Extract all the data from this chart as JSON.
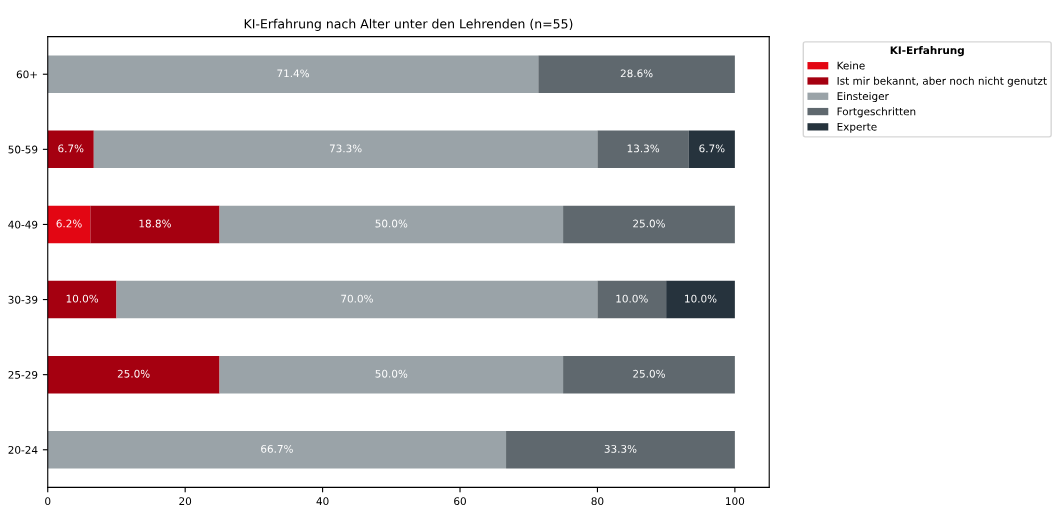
{
  "chart_data": {
    "type": "bar",
    "orientation": "horizontal",
    "stacked": true,
    "title": "KI-Erfahrung nach Alter unter den Lehrenden (n=55)",
    "categories": [
      "60+",
      "50-59",
      "40-49",
      "30-39",
      "25-29",
      "20-24"
    ],
    "series": [
      {
        "name": "Keine",
        "color": "#e30613",
        "values": [
          0,
          0,
          6.2,
          0,
          0,
          0
        ],
        "value_labels": [
          null,
          null,
          "6.2%",
          null,
          null,
          null
        ]
      },
      {
        "name": "Ist mir bekannt, aber noch nicht genutzt",
        "color": "#a50010",
        "values": [
          0,
          6.7,
          18.8,
          10.0,
          25.0,
          0
        ],
        "value_labels": [
          null,
          "6.7%",
          "18.8%",
          "10.0%",
          "25.0%",
          null
        ]
      },
      {
        "name": "Einsteiger",
        "color": "#9aa3a8",
        "values": [
          71.4,
          73.3,
          50.0,
          70.0,
          50.0,
          66.7
        ],
        "value_labels": [
          "71.4%",
          "73.3%",
          "50.0%",
          "70.0%",
          "50.0%",
          "66.7%"
        ]
      },
      {
        "name": "Fortgeschritten",
        "color": "#5f686e",
        "values": [
          28.6,
          13.3,
          25.0,
          10.0,
          25.0,
          33.3
        ],
        "value_labels": [
          "28.6%",
          "13.3%",
          "25.0%",
          "10.0%",
          "25.0%",
          "33.3%"
        ]
      },
      {
        "name": "Experte",
        "color": "#26333d",
        "values": [
          0,
          6.7,
          0,
          10.0,
          0,
          0
        ],
        "value_labels": [
          null,
          "6.7%",
          null,
          "10.0%",
          null,
          null
        ]
      }
    ],
    "xlim": [
      0,
      105
    ],
    "xticks": [
      0,
      20,
      40,
      60,
      80,
      100
    ],
    "grid": false,
    "legend": "top right",
    "legend_title": "KI-Erfahrung"
  }
}
